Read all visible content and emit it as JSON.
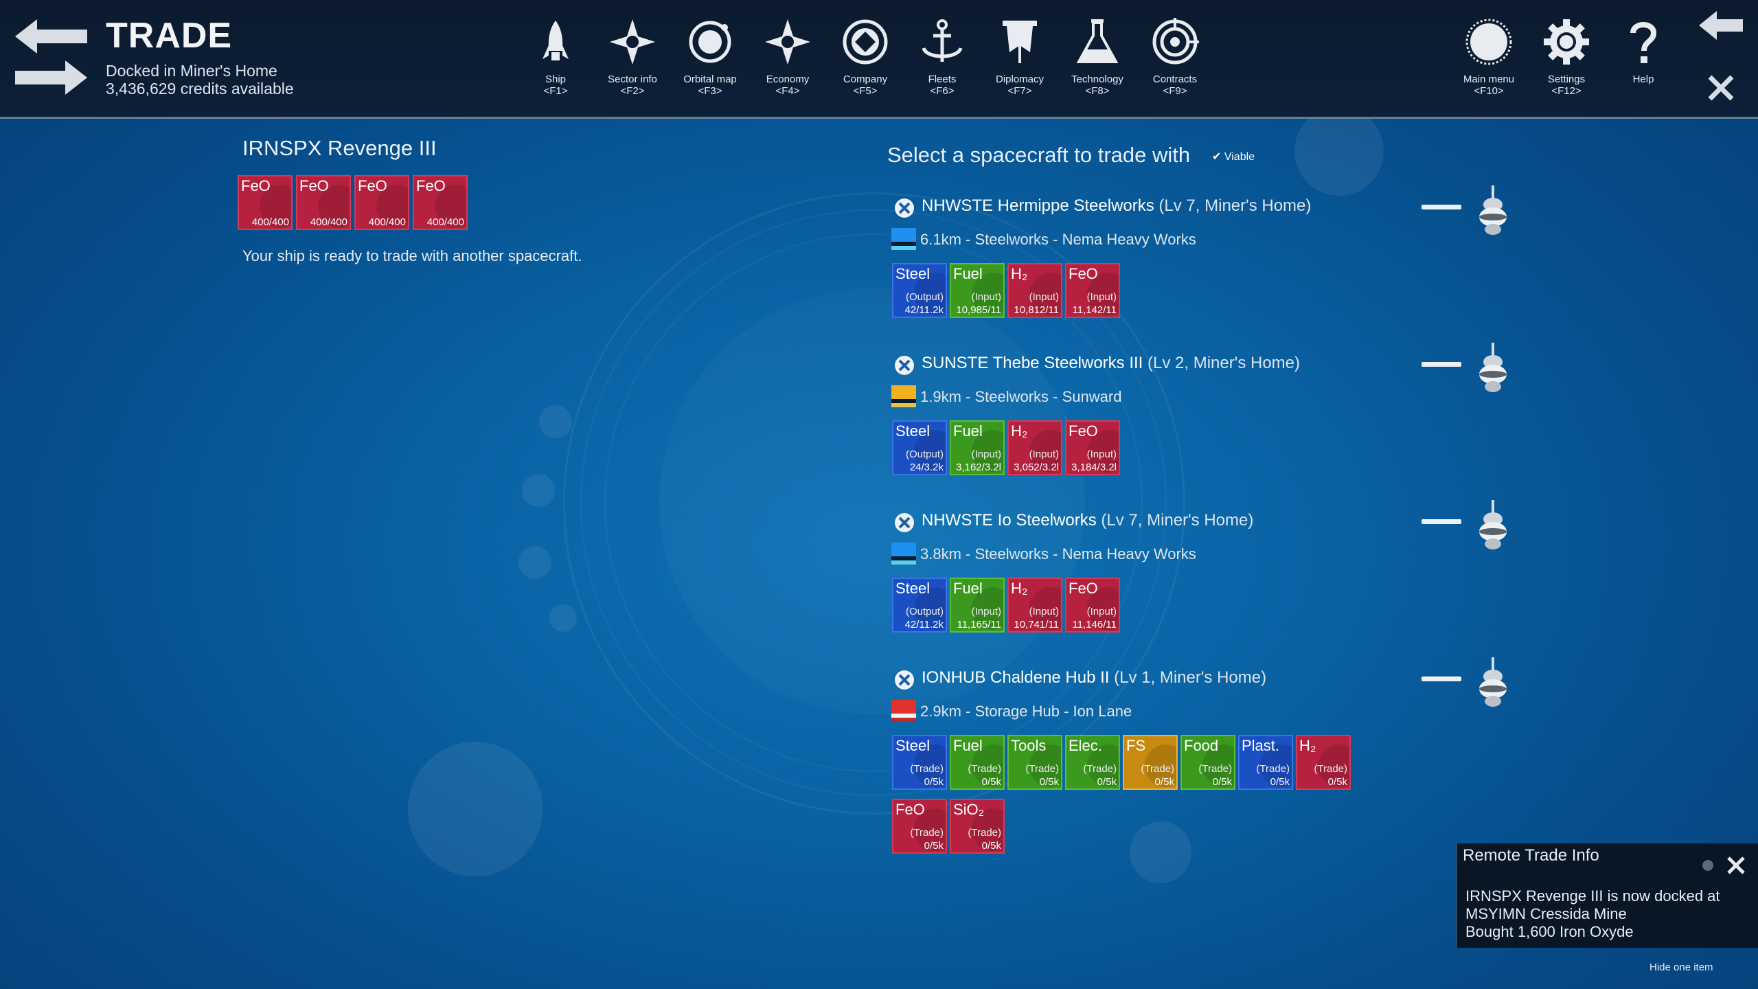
{
  "header": {
    "title": "TRADE",
    "location": "Docked in Miner's Home",
    "credits": "3,436,629 credits available"
  },
  "menu": [
    {
      "label": "Ship",
      "key": "<F1>",
      "icon": "rocket-icon"
    },
    {
      "label": "Sector info",
      "key": "<F2>",
      "icon": "compass-star-icon"
    },
    {
      "label": "Orbital map",
      "key": "<F3>",
      "icon": "orbit-icon"
    },
    {
      "label": "Economy",
      "key": "<F4>",
      "icon": "compass-star-icon"
    },
    {
      "label": "Company",
      "key": "<F5>",
      "icon": "company-emblem-icon"
    },
    {
      "label": "Fleets",
      "key": "<F6>",
      "icon": "anchor-icon"
    },
    {
      "label": "Diplomacy",
      "key": "<F7>",
      "icon": "flag-icon"
    },
    {
      "label": "Technology",
      "key": "<F8>",
      "icon": "flask-icon"
    },
    {
      "label": "Contracts",
      "key": "<F9>",
      "icon": "target-icon"
    }
  ],
  "menu_right": [
    {
      "label": "Main menu",
      "key": "<F10>",
      "icon": "planet-icon"
    },
    {
      "label": "Settings",
      "key": "<F12>",
      "icon": "gear-icon"
    },
    {
      "label": "Help",
      "key": "",
      "icon": "question-icon"
    }
  ],
  "player_ship": {
    "name": "IRNSPX Revenge III",
    "cargo": [
      {
        "name": "FeO",
        "amount": "400/400"
      },
      {
        "name": "FeO",
        "amount": "400/400"
      },
      {
        "name": "FeO",
        "amount": "400/400"
      },
      {
        "name": "FeO",
        "amount": "400/400"
      }
    ],
    "status": "Your ship is ready to trade with another spacecraft."
  },
  "trade": {
    "title": "Select a spacecraft to trade with",
    "viable_label": "Viable",
    "entries": [
      {
        "name": "NHWSTE Hermippe Steelworks",
        "level": "(Lv 7, Miner's Home)",
        "distance": "6.1km - Steelworks - Nema Heavy Works",
        "flag": "blue",
        "goods": [
          {
            "name": "Steel",
            "tag": "(Output)",
            "amount": "42/11.2k",
            "color": "blue"
          },
          {
            "name": "Fuel",
            "tag": "(Input)",
            "amount": "10,985/11",
            "color": "green"
          },
          {
            "name": "H₂",
            "tag": "(Input)",
            "amount": "10,812/11",
            "color": "red"
          },
          {
            "name": "FeO",
            "tag": "(Input)",
            "amount": "11,142/11",
            "color": "red"
          }
        ]
      },
      {
        "name": "SUNSTE Thebe Steelworks III",
        "level": "(Lv 2, Miner's Home)",
        "distance": "1.9km - Steelworks - Sunward",
        "flag": "yellow",
        "goods": [
          {
            "name": "Steel",
            "tag": "(Output)",
            "amount": "24/3.2k",
            "color": "blue"
          },
          {
            "name": "Fuel",
            "tag": "(Input)",
            "amount": "3,162/3.2l",
            "color": "green"
          },
          {
            "name": "H₂",
            "tag": "(Input)",
            "amount": "3,052/3.2l",
            "color": "red"
          },
          {
            "name": "FeO",
            "tag": "(Input)",
            "amount": "3,184/3.2l",
            "color": "red"
          }
        ]
      },
      {
        "name": "NHWSTE Io Steelworks",
        "level": "(Lv 7, Miner's Home)",
        "distance": "3.8km - Steelworks - Nema Heavy Works",
        "flag": "blue",
        "goods": [
          {
            "name": "Steel",
            "tag": "(Output)",
            "amount": "42/11.2k",
            "color": "blue"
          },
          {
            "name": "Fuel",
            "tag": "(Input)",
            "amount": "11,165/11",
            "color": "green"
          },
          {
            "name": "H₂",
            "tag": "(Input)",
            "amount": "10,741/11",
            "color": "red"
          },
          {
            "name": "FeO",
            "tag": "(Input)",
            "amount": "11,146/11",
            "color": "red"
          }
        ]
      },
      {
        "name": "IONHUB Chaldene Hub II",
        "level": "(Lv 1, Miner's Home)",
        "distance": "2.9km - Storage Hub - Ion Lane",
        "flag": "red",
        "goods": [
          {
            "name": "Steel",
            "tag": "(Trade)",
            "amount": "0/5k",
            "color": "blue"
          },
          {
            "name": "Fuel",
            "tag": "(Trade)",
            "amount": "0/5k",
            "color": "green"
          },
          {
            "name": "Tools",
            "tag": "(Trade)",
            "amount": "0/5k",
            "color": "green"
          },
          {
            "name": "Elec.",
            "tag": "(Trade)",
            "amount": "0/5k",
            "color": "green"
          },
          {
            "name": "FS",
            "tag": "(Trade)",
            "amount": "0/5k",
            "color": "gold"
          },
          {
            "name": "Food",
            "tag": "(Trade)",
            "amount": "0/5k",
            "color": "green"
          },
          {
            "name": "Plast.",
            "tag": "(Trade)",
            "amount": "0/5k",
            "color": "blue"
          },
          {
            "name": "H₂",
            "tag": "(Trade)",
            "amount": "0/5k",
            "color": "red"
          },
          {
            "name": "FeO",
            "tag": "(Trade)",
            "amount": "0/5k",
            "color": "red"
          },
          {
            "name": "SiO₂",
            "tag": "(Trade)",
            "amount": "0/5k",
            "color": "red"
          }
        ]
      }
    ]
  },
  "notification": {
    "title": "Remote Trade Info",
    "lines": [
      "IRNSPX Revenge III is now docked at",
      "MSYIMN Cressida Mine",
      "Bought 1,600 Iron Oxyde"
    ],
    "hide_label": "Hide one item"
  }
}
